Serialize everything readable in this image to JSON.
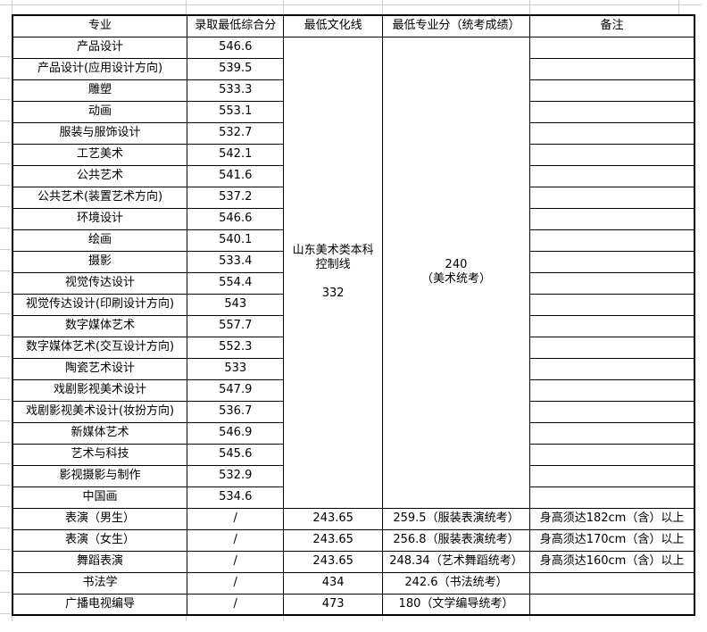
{
  "table": {
    "headers": {
      "major": "专业",
      "comprehensive": "录取最低综合分",
      "culture": "最低文化线",
      "score": "最低专业分（统考成绩）",
      "remark": "备注"
    },
    "merged": {
      "rowspan": 22,
      "culture_line": "山东美术类本科\n控制线\n\n332",
      "major_score": "240\n（美术统考）"
    },
    "rows": [
      {
        "major": "产品设计",
        "comprehensive": "546.6",
        "remark": ""
      },
      {
        "major": "产品设计(应用设计方向)",
        "comprehensive": "539.5",
        "remark": ""
      },
      {
        "major": "雕塑",
        "comprehensive": "533.3",
        "remark": ""
      },
      {
        "major": "动画",
        "comprehensive": "553.1",
        "remark": ""
      },
      {
        "major": "服装与服饰设计",
        "comprehensive": "532.7",
        "remark": ""
      },
      {
        "major": "工艺美术",
        "comprehensive": "542.1",
        "remark": ""
      },
      {
        "major": "公共艺术",
        "comprehensive": "541.6",
        "remark": ""
      },
      {
        "major": "公共艺术(装置艺术方向)",
        "comprehensive": "537.2",
        "remark": ""
      },
      {
        "major": "环境设计",
        "comprehensive": "546.6",
        "remark": ""
      },
      {
        "major": "绘画",
        "comprehensive": "540.1",
        "remark": ""
      },
      {
        "major": "摄影",
        "comprehensive": "533.4",
        "remark": ""
      },
      {
        "major": "视觉传达设计",
        "comprehensive": "554.4",
        "remark": ""
      },
      {
        "major": "视觉传达设计(印刷设计方向)",
        "comprehensive": "543",
        "remark": ""
      },
      {
        "major": "数字媒体艺术",
        "comprehensive": "557.7",
        "remark": ""
      },
      {
        "major": "数字媒体艺术(交互设计方向)",
        "comprehensive": "552.3",
        "remark": ""
      },
      {
        "major": "陶瓷艺术设计",
        "comprehensive": "533",
        "remark": ""
      },
      {
        "major": "戏剧影视美术设计",
        "comprehensive": "547.9",
        "remark": ""
      },
      {
        "major": "戏剧影视美术设计(妆扮方向)",
        "comprehensive": "536.7",
        "remark": ""
      },
      {
        "major": "新媒体艺术",
        "comprehensive": "546.9",
        "remark": ""
      },
      {
        "major": "艺术与科技",
        "comprehensive": "545.6",
        "remark": ""
      },
      {
        "major": "影视摄影与制作",
        "comprehensive": "532.9",
        "remark": ""
      },
      {
        "major": "中国画",
        "comprehensive": "534.6",
        "remark": ""
      },
      {
        "major": "表演（男生）",
        "comprehensive": "/",
        "culture": "243.65",
        "score": "259.5（服装表演统考）",
        "remark": "身高须达182cm（含）以上"
      },
      {
        "major": "表演（女生）",
        "comprehensive": "/",
        "culture": "243.65",
        "score": "256.8（服装表演统考）",
        "remark": "身高须达170cm（含）以上"
      },
      {
        "major": "舞蹈表演",
        "comprehensive": "/",
        "culture": "243.65",
        "score": "248.34（艺术舞蹈统考）",
        "remark": "身高须达160cm（含）以上"
      },
      {
        "major": "书法学",
        "comprehensive": "/",
        "culture": "434",
        "score": "242.6（书法统考）",
        "remark": ""
      },
      {
        "major": "广播电视编导",
        "comprehensive": "/",
        "culture": "473",
        "score": "180（文学编导统考）",
        "remark": ""
      }
    ]
  }
}
